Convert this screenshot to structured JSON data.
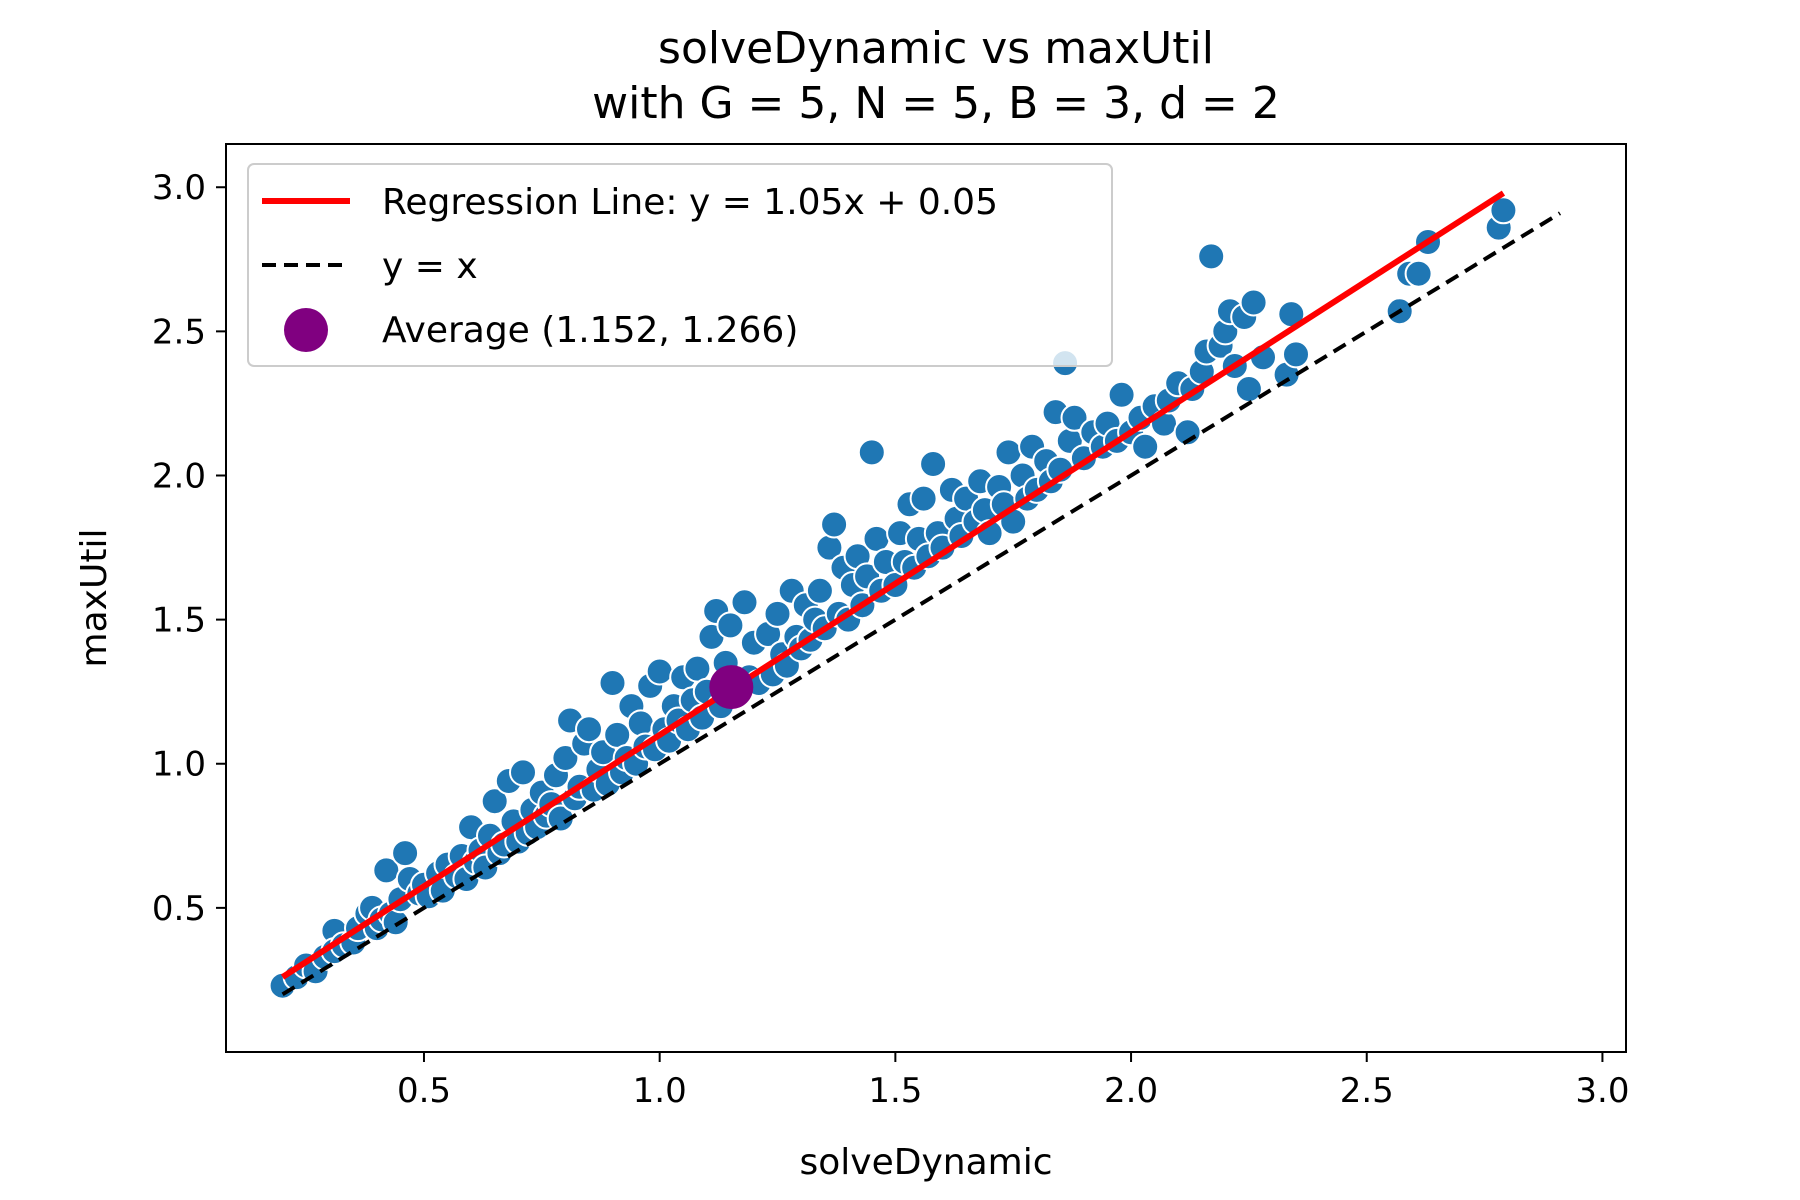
{
  "chart_data": {
    "type": "scatter",
    "title_line1": "solveDynamic vs maxUtil",
    "title_line2": "with G = 5, N = 5, B = 3, d = 2",
    "xlabel": "solveDynamic",
    "ylabel": "maxUtil",
    "xlim": [
      0.08,
      3.05
    ],
    "ylim": [
      0.0,
      3.15
    ],
    "x_ticks": [
      0.5,
      1.0,
      1.5,
      2.0,
      2.5,
      3.0
    ],
    "x_tick_labels": [
      "0.5",
      "1.0",
      "1.5",
      "2.0",
      "2.5",
      "3.0"
    ],
    "y_ticks": [
      0.5,
      1.0,
      1.5,
      2.0,
      2.5,
      3.0
    ],
    "y_tick_labels": [
      "0.5",
      "1.0",
      "1.5",
      "2.0",
      "2.5",
      "3.0"
    ],
    "grid": false,
    "legend_position": "top-left",
    "colors": {
      "points": "#1f77b4",
      "point_edge": "#ffffff",
      "regression": "#ff0000",
      "identity": "#000000",
      "average": "#800080"
    },
    "regression": {
      "label": "Regression Line: y = 1.05x + 0.05",
      "slope": 1.05,
      "intercept": 0.05,
      "x_range": [
        0.2,
        2.79
      ]
    },
    "identity": {
      "label": "y = x",
      "x_range": [
        0.2,
        2.91
      ]
    },
    "average": {
      "label": "Average (1.152, 1.266)",
      "x": 1.152,
      "y": 1.266
    },
    "series": [
      {
        "points": [
          [
            0.2,
            0.23
          ],
          [
            0.23,
            0.26
          ],
          [
            0.25,
            0.3
          ],
          [
            0.27,
            0.28
          ],
          [
            0.29,
            0.33
          ],
          [
            0.31,
            0.42
          ],
          [
            0.31,
            0.35
          ],
          [
            0.33,
            0.37
          ],
          [
            0.35,
            0.38
          ],
          [
            0.36,
            0.43
          ],
          [
            0.38,
            0.48
          ],
          [
            0.39,
            0.5
          ],
          [
            0.4,
            0.43
          ],
          [
            0.41,
            0.46
          ],
          [
            0.42,
            0.63
          ],
          [
            0.43,
            0.48
          ],
          [
            0.44,
            0.45
          ],
          [
            0.45,
            0.53
          ],
          [
            0.46,
            0.69
          ],
          [
            0.47,
            0.6
          ],
          [
            0.49,
            0.55
          ],
          [
            0.5,
            0.58
          ],
          [
            0.51,
            0.54
          ],
          [
            0.53,
            0.62
          ],
          [
            0.54,
            0.56
          ],
          [
            0.55,
            0.65
          ],
          [
            0.57,
            0.61
          ],
          [
            0.58,
            0.68
          ],
          [
            0.59,
            0.6
          ],
          [
            0.6,
            0.78
          ],
          [
            0.61,
            0.66
          ],
          [
            0.62,
            0.7
          ],
          [
            0.63,
            0.64
          ],
          [
            0.64,
            0.75
          ],
          [
            0.65,
            0.87
          ],
          [
            0.66,
            0.69
          ],
          [
            0.67,
            0.72
          ],
          [
            0.68,
            0.94
          ],
          [
            0.69,
            0.8
          ],
          [
            0.7,
            0.73
          ],
          [
            0.71,
            0.97
          ],
          [
            0.72,
            0.76
          ],
          [
            0.73,
            0.84
          ],
          [
            0.74,
            0.78
          ],
          [
            0.75,
            0.9
          ],
          [
            0.76,
            0.82
          ],
          [
            0.77,
            0.86
          ],
          [
            0.78,
            0.96
          ],
          [
            0.79,
            0.81
          ],
          [
            0.8,
            1.02
          ],
          [
            0.81,
            1.15
          ],
          [
            0.82,
            0.88
          ],
          [
            0.83,
            0.92
          ],
          [
            0.84,
            1.07
          ],
          [
            0.85,
            1.12
          ],
          [
            0.86,
            0.91
          ],
          [
            0.87,
            0.98
          ],
          [
            0.88,
            1.04
          ],
          [
            0.89,
            0.93
          ],
          [
            0.9,
            1.28
          ],
          [
            0.91,
            1.1
          ],
          [
            0.92,
            0.97
          ],
          [
            0.93,
            1.02
          ],
          [
            0.94,
            1.2
          ],
          [
            0.95,
            1.0
          ],
          [
            0.96,
            1.14
          ],
          [
            0.97,
            1.06
          ],
          [
            0.98,
            1.27
          ],
          [
            0.99,
            1.05
          ],
          [
            1.0,
            1.32
          ],
          [
            1.01,
            1.12
          ],
          [
            1.02,
            1.08
          ],
          [
            1.03,
            1.2
          ],
          [
            1.04,
            1.15
          ],
          [
            1.05,
            1.3
          ],
          [
            1.06,
            1.12
          ],
          [
            1.07,
            1.22
          ],
          [
            1.08,
            1.33
          ],
          [
            1.09,
            1.16
          ],
          [
            1.1,
            1.25
          ],
          [
            1.11,
            1.44
          ],
          [
            1.12,
            1.53
          ],
          [
            1.13,
            1.2
          ],
          [
            1.14,
            1.35
          ],
          [
            1.15,
            1.48
          ],
          [
            1.16,
            1.24
          ],
          [
            1.18,
            1.56
          ],
          [
            1.19,
            1.3
          ],
          [
            1.2,
            1.42
          ],
          [
            1.21,
            1.28
          ],
          [
            1.23,
            1.45
          ],
          [
            1.24,
            1.31
          ],
          [
            1.25,
            1.52
          ],
          [
            1.26,
            1.38
          ],
          [
            1.27,
            1.34
          ],
          [
            1.28,
            1.6
          ],
          [
            1.29,
            1.44
          ],
          [
            1.3,
            1.4
          ],
          [
            1.31,
            1.55
          ],
          [
            1.32,
            1.43
          ],
          [
            1.33,
            1.5
          ],
          [
            1.34,
            1.6
          ],
          [
            1.35,
            1.47
          ],
          [
            1.36,
            1.75
          ],
          [
            1.37,
            1.83
          ],
          [
            1.38,
            1.52
          ],
          [
            1.39,
            1.68
          ],
          [
            1.4,
            1.5
          ],
          [
            1.41,
            1.62
          ],
          [
            1.42,
            1.72
          ],
          [
            1.43,
            1.55
          ],
          [
            1.44,
            1.65
          ],
          [
            1.45,
            2.08
          ],
          [
            1.46,
            1.78
          ],
          [
            1.47,
            1.6
          ],
          [
            1.48,
            1.7
          ],
          [
            1.5,
            1.62
          ],
          [
            1.51,
            1.8
          ],
          [
            1.52,
            1.7
          ],
          [
            1.53,
            1.9
          ],
          [
            1.54,
            1.68
          ],
          [
            1.55,
            1.78
          ],
          [
            1.56,
            1.92
          ],
          [
            1.57,
            1.72
          ],
          [
            1.58,
            2.04
          ],
          [
            1.59,
            1.8
          ],
          [
            1.6,
            1.75
          ],
          [
            1.62,
            1.95
          ],
          [
            1.63,
            1.85
          ],
          [
            1.64,
            1.79
          ],
          [
            1.65,
            1.92
          ],
          [
            1.67,
            1.84
          ],
          [
            1.68,
            1.98
          ],
          [
            1.69,
            1.88
          ],
          [
            1.7,
            1.8
          ],
          [
            1.72,
            1.96
          ],
          [
            1.73,
            1.9
          ],
          [
            1.74,
            2.08
          ],
          [
            1.75,
            1.84
          ],
          [
            1.77,
            2.0
          ],
          [
            1.78,
            1.92
          ],
          [
            1.79,
            2.1
          ],
          [
            1.8,
            1.95
          ],
          [
            1.82,
            2.05
          ],
          [
            1.83,
            1.98
          ],
          [
            1.84,
            2.22
          ],
          [
            1.85,
            2.02
          ],
          [
            1.86,
            2.39
          ],
          [
            1.87,
            2.12
          ],
          [
            1.88,
            2.2
          ],
          [
            1.9,
            2.06
          ],
          [
            1.92,
            2.15
          ],
          [
            1.94,
            2.1
          ],
          [
            1.95,
            2.18
          ],
          [
            1.97,
            2.12
          ],
          [
            1.98,
            2.28
          ],
          [
            2.0,
            2.15
          ],
          [
            2.02,
            2.2
          ],
          [
            2.03,
            2.1
          ],
          [
            2.05,
            2.24
          ],
          [
            2.07,
            2.18
          ],
          [
            2.08,
            2.26
          ],
          [
            2.1,
            2.32
          ],
          [
            2.12,
            2.15
          ],
          [
            2.13,
            2.3
          ],
          [
            2.15,
            2.36
          ],
          [
            2.16,
            2.43
          ],
          [
            2.17,
            2.76
          ],
          [
            2.19,
            2.45
          ],
          [
            2.2,
            2.5
          ],
          [
            2.21,
            2.57
          ],
          [
            2.22,
            2.38
          ],
          [
            2.24,
            2.55
          ],
          [
            2.25,
            2.3
          ],
          [
            2.26,
            2.6
          ],
          [
            2.28,
            2.41
          ],
          [
            2.33,
            2.35
          ],
          [
            2.34,
            2.56
          ],
          [
            2.35,
            2.42
          ],
          [
            2.57,
            2.57
          ],
          [
            2.59,
            2.7
          ],
          [
            2.61,
            2.7
          ],
          [
            2.63,
            2.81
          ],
          [
            2.78,
            2.86
          ],
          [
            2.79,
            2.92
          ]
        ]
      }
    ]
  }
}
